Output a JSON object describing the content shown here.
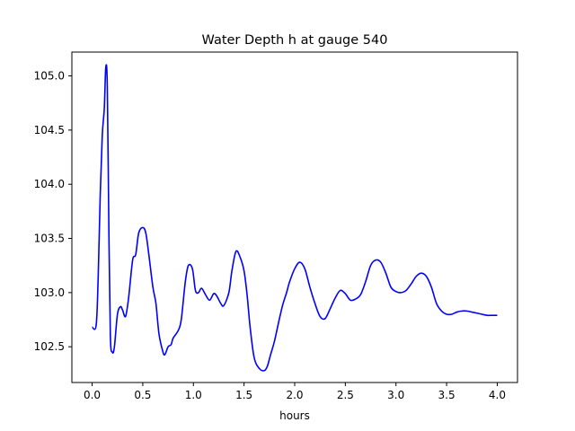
{
  "chart_data": {
    "type": "line",
    "title": "Water Depth h at gauge 540",
    "xlabel": "hours",
    "ylabel": "",
    "xlim": [
      -0.2,
      4.2
    ],
    "ylim": [
      102.17,
      105.22
    ],
    "xticks": [
      0.0,
      0.5,
      1.0,
      1.5,
      2.0,
      2.5,
      3.0,
      3.5,
      4.0
    ],
    "xtick_labels": [
      "0.0",
      "0.5",
      "1.0",
      "1.5",
      "2.0",
      "2.5",
      "3.0",
      "3.5",
      "4.0"
    ],
    "yticks": [
      102.5,
      103.0,
      103.5,
      104.0,
      104.5,
      105.0
    ],
    "ytick_labels": [
      "102.5",
      "103.0",
      "103.5",
      "104.0",
      "104.5",
      "105.0"
    ],
    "grid": false,
    "line_color": "#0000ff",
    "series": [
      {
        "x": [
          0.0,
          0.04,
          0.06,
          0.08,
          0.1,
          0.12,
          0.135,
          0.15,
          0.165,
          0.18,
          0.2,
          0.22,
          0.25,
          0.28,
          0.3,
          0.33,
          0.36,
          0.4,
          0.43,
          0.46,
          0.5,
          0.53,
          0.56,
          0.6,
          0.63,
          0.66,
          0.7,
          0.72,
          0.75,
          0.78,
          0.8,
          0.85,
          0.88,
          0.92,
          0.95,
          0.99,
          1.02,
          1.05,
          1.08,
          1.12,
          1.16,
          1.2,
          1.23,
          1.27,
          1.3,
          1.35,
          1.38,
          1.42,
          1.46,
          1.5,
          1.53,
          1.56,
          1.6,
          1.65,
          1.7,
          1.73,
          1.76,
          1.8,
          1.84,
          1.88,
          1.92,
          1.95,
          2.0,
          2.05,
          2.1,
          2.15,
          2.2,
          2.25,
          2.3,
          2.35,
          2.4,
          2.45,
          2.5,
          2.55,
          2.6,
          2.65,
          2.7,
          2.75,
          2.8,
          2.85,
          2.9,
          2.95,
          3.0,
          3.05,
          3.1,
          3.15,
          3.2,
          3.25,
          3.3,
          3.35,
          3.4,
          3.45,
          3.5,
          3.55,
          3.6,
          3.65,
          3.7,
          3.75,
          3.8,
          3.85,
          3.9,
          3.95,
          4.0
        ],
        "y": [
          102.68,
          102.7,
          103.15,
          103.9,
          104.45,
          104.7,
          105.08,
          104.9,
          103.6,
          102.6,
          102.45,
          102.5,
          102.8,
          102.87,
          102.84,
          102.78,
          102.95,
          103.3,
          103.35,
          103.55,
          103.6,
          103.55,
          103.35,
          103.05,
          102.9,
          102.62,
          102.45,
          102.43,
          102.5,
          102.52,
          102.58,
          102.65,
          102.75,
          103.1,
          103.25,
          103.22,
          103.02,
          103.0,
          103.04,
          102.98,
          102.93,
          102.99,
          102.97,
          102.9,
          102.88,
          103.0,
          103.2,
          103.38,
          103.33,
          103.2,
          102.98,
          102.68,
          102.4,
          102.3,
          102.28,
          102.32,
          102.42,
          102.55,
          102.72,
          102.88,
          103.0,
          103.1,
          103.22,
          103.28,
          103.22,
          103.05,
          102.9,
          102.78,
          102.76,
          102.85,
          102.95,
          103.02,
          102.99,
          102.93,
          102.94,
          102.98,
          103.1,
          103.25,
          103.3,
          103.28,
          103.18,
          103.05,
          103.01,
          103.0,
          103.02,
          103.08,
          103.15,
          103.18,
          103.15,
          103.05,
          102.9,
          102.83,
          102.8,
          102.8,
          102.82,
          102.83,
          102.83,
          102.82,
          102.81,
          102.8,
          102.79,
          102.79,
          102.79
        ]
      }
    ]
  }
}
